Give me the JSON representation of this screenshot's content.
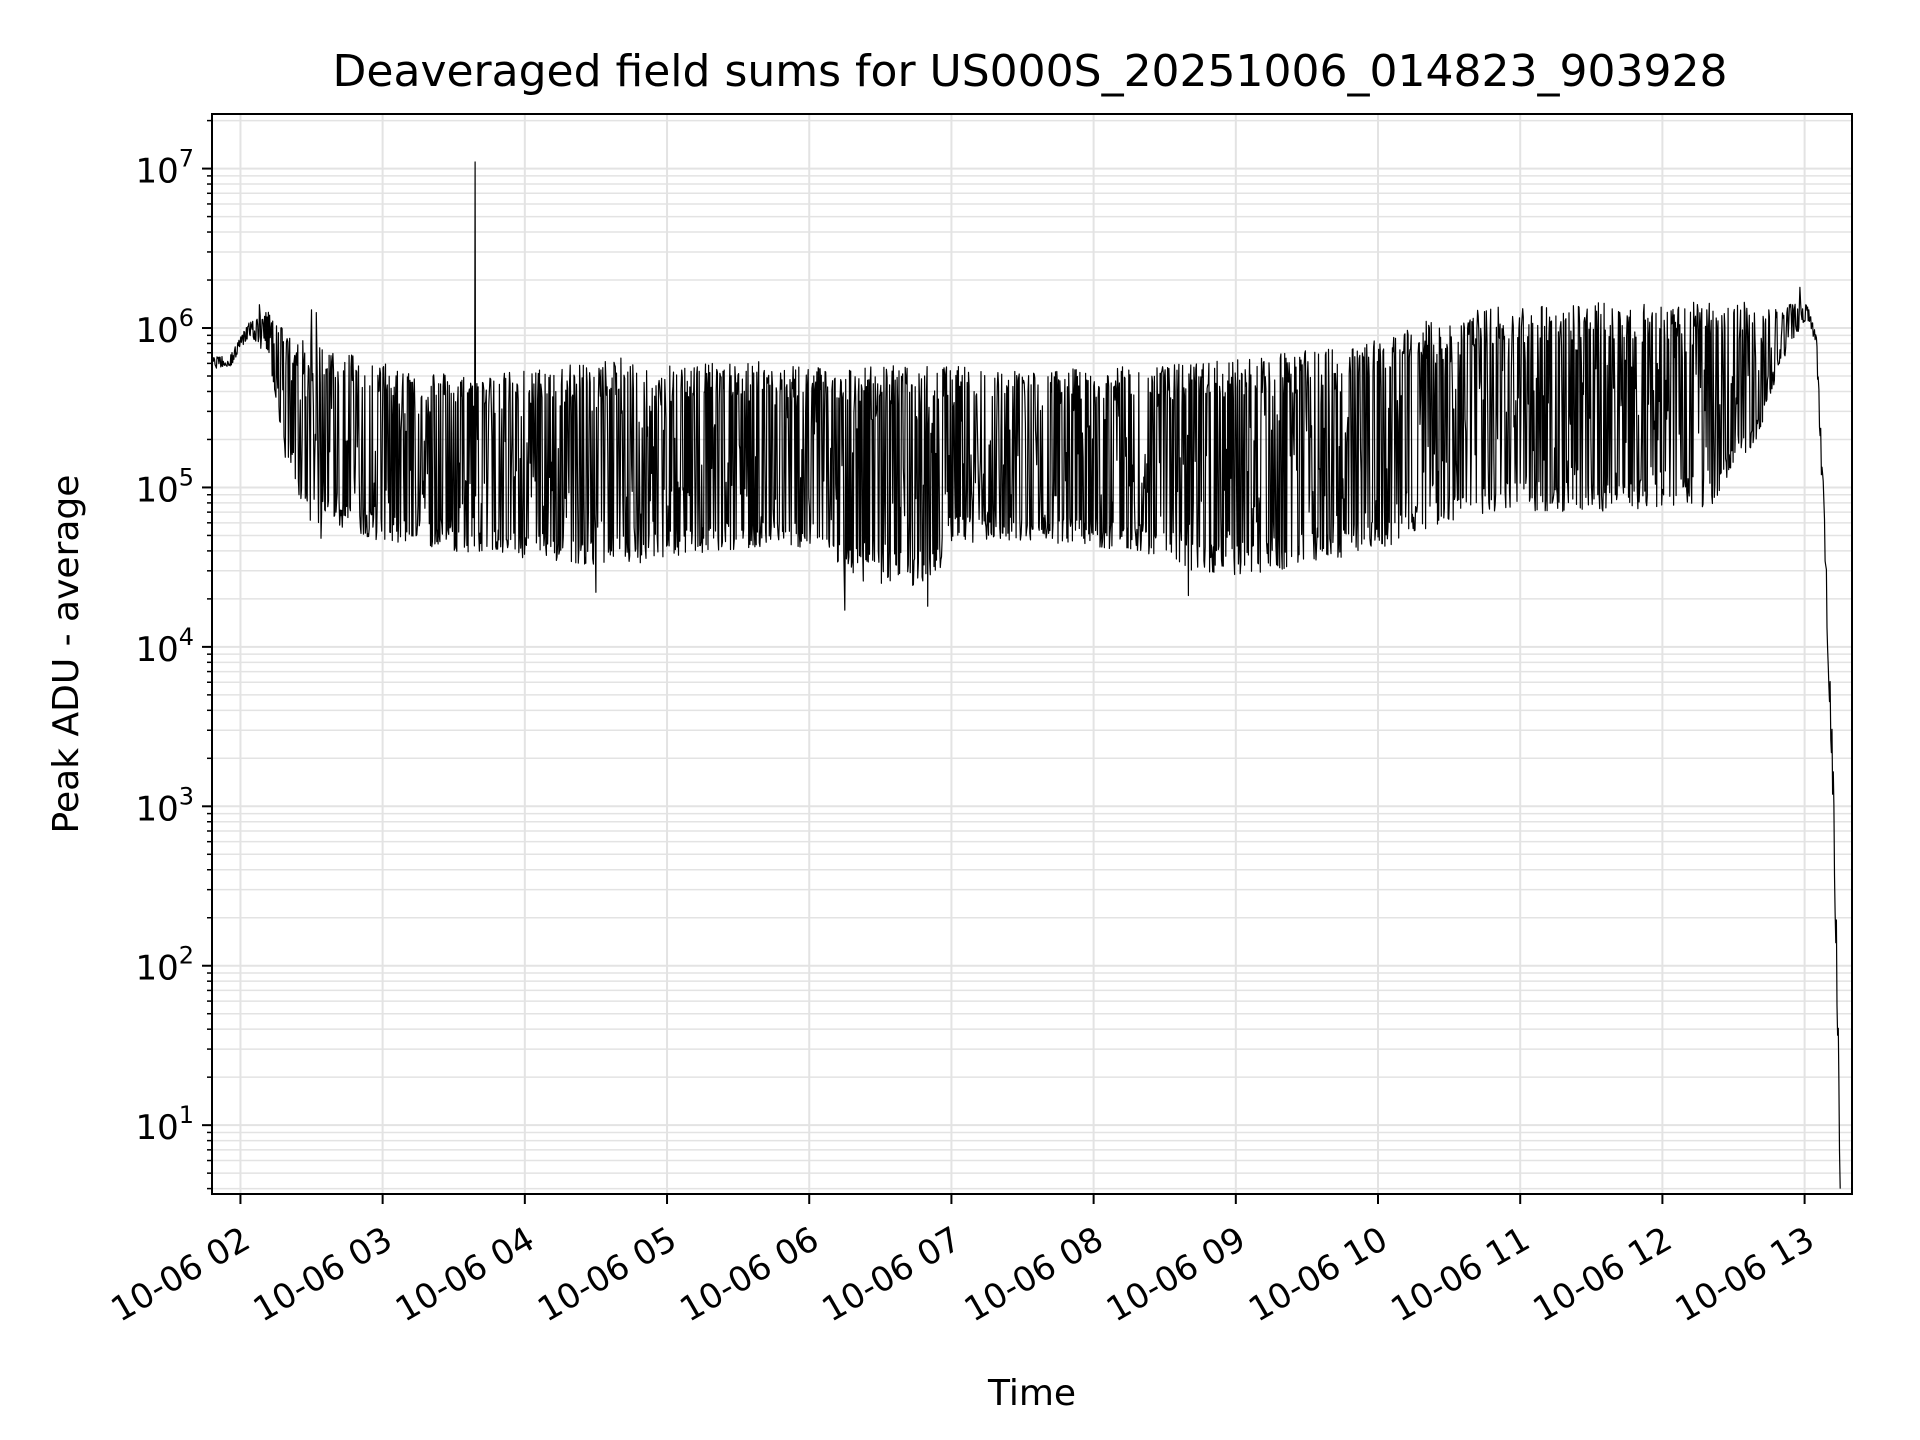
{
  "chart_data": {
    "type": "line",
    "title": "Deaveraged field sums for US000S_20251006_014823_903928",
    "xlabel": "Time",
    "ylabel": "Peak ADU - average",
    "yscale": "log",
    "grid": true,
    "legend": "none",
    "line_color": "#000000",
    "grid_color": "#e3e3e3",
    "xlim": [
      "2025-10-06 01:48",
      "2025-10-06 13:20"
    ],
    "ylim": [
      3.7,
      22000000
    ],
    "x_tick_labels": [
      "10-06 02",
      "10-06 03",
      "10-06 04",
      "10-06 05",
      "10-06 06",
      "10-06 07",
      "10-06 08",
      "10-06 09",
      "10-06 10",
      "10-06 11",
      "10-06 12",
      "10-06 13"
    ],
    "x_tick_times": [
      "2025-10-06 02:00",
      "2025-10-06 03:00",
      "2025-10-06 04:00",
      "2025-10-06 05:00",
      "2025-10-06 06:00",
      "2025-10-06 07:00",
      "2025-10-06 08:00",
      "2025-10-06 09:00",
      "2025-10-06 10:00",
      "2025-10-06 11:00",
      "2025-10-06 12:00",
      "2025-10-06 13:00"
    ],
    "y_tick_values": [
      10,
      100,
      1000,
      10000,
      100000,
      1000000,
      10000000
    ],
    "y_tick_labels": [
      {
        "base": "10",
        "exp": "1"
      },
      {
        "base": "10",
        "exp": "2"
      },
      {
        "base": "10",
        "exp": "3"
      },
      {
        "base": "10",
        "exp": "4"
      },
      {
        "base": "10",
        "exp": "5"
      },
      {
        "base": "10",
        "exp": "6"
      },
      {
        "base": "10",
        "exp": "7"
      }
    ],
    "envelope": {
      "x": [
        "2025-10-06 01:48",
        "2025-10-06 01:56",
        "2025-10-06 02:04",
        "2025-10-06 02:12",
        "2025-10-06 02:20",
        "2025-10-06 02:30",
        "2025-10-06 02:45",
        "2025-10-06 03:00",
        "2025-10-06 03:20",
        "2025-10-06 03:40",
        "2025-10-06 04:00",
        "2025-10-06 04:20",
        "2025-10-06 04:40",
        "2025-10-06 05:00",
        "2025-10-06 05:20",
        "2025-10-06 05:40",
        "2025-10-06 06:00",
        "2025-10-06 06:20",
        "2025-10-06 06:40",
        "2025-10-06 06:52",
        "2025-10-06 07:00",
        "2025-10-06 07:20",
        "2025-10-06 07:40",
        "2025-10-06 08:00",
        "2025-10-06 08:20",
        "2025-10-06 08:40",
        "2025-10-06 09:00",
        "2025-10-06 09:20",
        "2025-10-06 09:40",
        "2025-10-06 10:00",
        "2025-10-06 10:20",
        "2025-10-06 10:40",
        "2025-10-06 11:00",
        "2025-10-06 11:20",
        "2025-10-06 11:40",
        "2025-10-06 12:00",
        "2025-10-06 12:20",
        "2025-10-06 12:40",
        "2025-10-06 12:50",
        "2025-10-06 13:00",
        "2025-10-06 13:02",
        "2025-10-06 13:05",
        "2025-10-06 13:08",
        "2025-10-06 13:12",
        "2025-10-06 13:14",
        "2025-10-06 13:15"
      ],
      "upper": [
        650000,
        700000,
        1100000,
        1300000,
        900000,
        800000,
        750000,
        600000,
        550000,
        500000,
        550000,
        600000,
        650000,
        620000,
        600000,
        620000,
        600000,
        580000,
        580000,
        580000,
        580000,
        560000,
        550000,
        560000,
        580000,
        600000,
        650000,
        700000,
        750000,
        850000,
        1100000,
        1300000,
        1400000,
        1450000,
        1450000,
        1450000,
        1450000,
        1450000,
        1350000,
        1500000,
        1300000,
        900000,
        100000,
        2000,
        80,
        4
      ],
      "lower": [
        550000,
        580000,
        900000,
        650000,
        120000,
        60000,
        55000,
        45000,
        42000,
        38000,
        35000,
        33000,
        32000,
        36000,
        40000,
        42000,
        42000,
        26000,
        24000,
        24000,
        45000,
        45000,
        45000,
        42000,
        40000,
        30000,
        28000,
        30000,
        35000,
        40000,
        55000,
        65000,
        70000,
        70000,
        70000,
        75000,
        75000,
        200000,
        600000,
        1100000,
        1100000,
        700000,
        50000,
        1000,
        30,
        4
      ]
    },
    "spikes": [
      {
        "x": "2025-10-06 03:39",
        "y": 11000000
      },
      {
        "x": "2025-10-06 02:30",
        "y": 1300000
      },
      {
        "x": "2025-10-06 02:32",
        "y": 1250000
      },
      {
        "x": "2025-10-06 12:58",
        "y": 1800000
      },
      {
        "x": "2025-10-06 02:08",
        "y": 1400000
      }
    ],
    "dips": [
      {
        "x": "2025-10-06 06:15",
        "y": 17000
      },
      {
        "x": "2025-10-06 06:50",
        "y": 18000
      },
      {
        "x": "2025-10-06 04:30",
        "y": 22000
      },
      {
        "x": "2025-10-06 08:40",
        "y": 21000
      },
      {
        "x": "2025-10-06 02:34",
        "y": 48000
      }
    ]
  }
}
